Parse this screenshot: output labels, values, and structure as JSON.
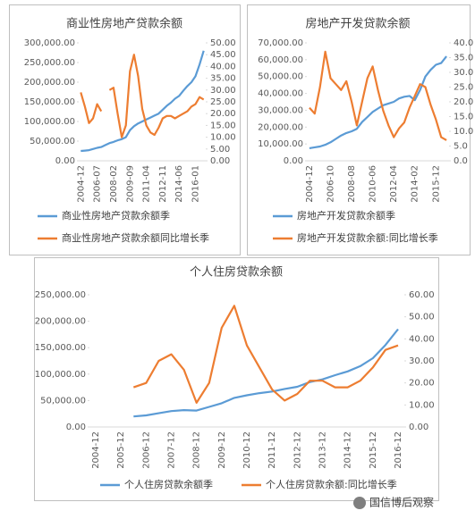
{
  "watermark": "国信博后观察",
  "chart_data": [
    {
      "type": "line",
      "title": "商业性房地产贷款余额",
      "categories": [
        "2004-12",
        null,
        null,
        null,
        "2006-07",
        null,
        null,
        null,
        "2008-02",
        null,
        null,
        null,
        "2009-09",
        null,
        null,
        null,
        "2011-04",
        null,
        null,
        null,
        "2012-11",
        null,
        null,
        null,
        "2014-06",
        null,
        null,
        null,
        "2016-01",
        null,
        null
      ],
      "series": [
        {
          "name": "商业性房地产贷款余额季",
          "color": "#5b9bd5",
          "values": [
            25000,
            26000,
            27000,
            30000,
            33000,
            35000,
            40000,
            45000,
            48000,
            52000,
            55000,
            60000,
            78000,
            88000,
            95000,
            100000,
            105000,
            110000,
            115000,
            120000,
            130000,
            140000,
            148000,
            158000,
            165000,
            178000,
            190000,
            200000,
            215000,
            245000,
            280000
          ]
        },
        {
          "name": "商业性房地产贷款余额同比增长季",
          "color": "#ed7d31",
          "axis": "y2",
          "values": [
            29,
            23,
            16,
            18,
            24,
            21,
            null,
            30,
            31,
            20,
            10,
            15,
            38,
            45,
            36,
            22,
            15,
            12,
            11,
            14,
            18,
            19,
            19,
            18,
            19,
            20,
            21,
            23,
            24,
            27,
            26
          ]
        }
      ],
      "ylim": [
        0,
        300000
      ],
      "yticks": [
        {
          "value": 0,
          "label": "0.00"
        },
        {
          "value": 50000,
          "label": "50,000.00"
        },
        {
          "value": 100000,
          "label": "100,000.00"
        },
        {
          "value": 150000,
          "label": "150,000.00"
        },
        {
          "value": 200000,
          "label": "200,000.00"
        },
        {
          "value": 250000,
          "label": "250,000.00"
        },
        {
          "value": 300000,
          "label": "300,000.00"
        }
      ],
      "y2lim": [
        0,
        50
      ],
      "y2ticks": [
        {
          "value": 0,
          "label": "0.00"
        },
        {
          "value": 5,
          "label": "5.00"
        },
        {
          "value": 10,
          "label": "10.00"
        },
        {
          "value": 15,
          "label": "15.00"
        },
        {
          "value": 20,
          "label": "20.00"
        },
        {
          "value": 25,
          "label": "25.00"
        },
        {
          "value": 30,
          "label": "30.00"
        },
        {
          "value": 35,
          "label": "35.00"
        },
        {
          "value": 40,
          "label": "40.00"
        },
        {
          "value": 45,
          "label": "45.00"
        },
        {
          "value": 50,
          "label": "50.00"
        }
      ],
      "legend": "bottom-vertical"
    },
    {
      "type": "line",
      "title": "房地产开发贷款余额",
      "categories": [
        "2004-12",
        null,
        null,
        null,
        "2006-10",
        null,
        null,
        null,
        "2008-08",
        null,
        null,
        null,
        "2010-06",
        null,
        null,
        null,
        "2012-04",
        null,
        null,
        null,
        "2014-02",
        null,
        null,
        null,
        "2015-12",
        null,
        null
      ],
      "series": [
        {
          "name": "房地产开发贷款余额季",
          "color": "#5b9bd5",
          "values": [
            7500,
            8000,
            8500,
            9500,
            11000,
            13000,
            15000,
            16500,
            17500,
            19000,
            23000,
            26000,
            29000,
            31000,
            33000,
            34000,
            35000,
            37000,
            38000,
            38500,
            36000,
            42000,
            50000,
            54000,
            57000,
            58000,
            62000
          ]
        },
        {
          "name": "房地产开发贷款余额:同比增长季",
          "color": "#ed7d31",
          "axis": "y2",
          "values": [
            18,
            16,
            25,
            37,
            28,
            26,
            24,
            27,
            20,
            12,
            20,
            28,
            32,
            24,
            17,
            12,
            8,
            11,
            13,
            18,
            22,
            26,
            25,
            19,
            14,
            8,
            7
          ]
        }
      ],
      "ylim": [
        0,
        70000
      ],
      "yticks": [
        {
          "value": 0,
          "label": "0.00"
        },
        {
          "value": 10000,
          "label": "10,000.00"
        },
        {
          "value": 20000,
          "label": "20,000.00"
        },
        {
          "value": 30000,
          "label": "30,000.00"
        },
        {
          "value": 40000,
          "label": "40,000.00"
        },
        {
          "value": 50000,
          "label": "50,000.00"
        },
        {
          "value": 60000,
          "label": "60,000.00"
        },
        {
          "value": 70000,
          "label": "70,000.00"
        }
      ],
      "y2lim": [
        0,
        40
      ],
      "y2ticks": [
        {
          "value": 0,
          "label": "0.0"
        },
        {
          "value": 5,
          "label": "5.0"
        },
        {
          "value": 10,
          "label": "10.0"
        },
        {
          "value": 15,
          "label": "15.0"
        },
        {
          "value": 20,
          "label": "20.0"
        },
        {
          "value": 25,
          "label": "25.0"
        },
        {
          "value": 30,
          "label": "30.0"
        },
        {
          "value": 35,
          "label": "35.0"
        },
        {
          "value": 40,
          "label": "40.0"
        }
      ],
      "legend": "bottom-vertical"
    },
    {
      "type": "line",
      "title": "个人住房贷款余额",
      "categories": [
        "2004-12",
        null,
        "2005-12",
        null,
        "2006-12",
        null,
        "2007-12",
        null,
        "2008-12",
        null,
        "2009-12",
        null,
        "2010-12",
        null,
        "2011-12",
        null,
        "2012-12",
        null,
        "2013-12",
        null,
        "2014-12",
        null,
        "2015-12",
        null,
        "2016-12"
      ],
      "series": [
        {
          "name": "个人住房贷款余额季",
          "color": "#5b9bd5",
          "values": [
            null,
            null,
            null,
            20000,
            22000,
            26000,
            30000,
            32000,
            31000,
            38000,
            45000,
            55000,
            60000,
            64000,
            67000,
            72000,
            76000,
            85000,
            90000,
            98000,
            105000,
            115000,
            130000,
            155000,
            185000
          ]
        },
        {
          "name": "个人住房贷款余额:同比增长季",
          "color": "#ed7d31",
          "axis": "y2",
          "values": [
            null,
            null,
            null,
            18,
            20,
            30,
            33,
            26,
            11,
            20,
            45,
            55,
            37,
            27,
            17,
            12,
            15,
            21,
            21,
            18,
            18,
            21,
            27,
            35,
            37
          ]
        }
      ],
      "ylim": [
        0,
        250000
      ],
      "yticks": [
        {
          "value": 0,
          "label": "0.00"
        },
        {
          "value": 50000,
          "label": "50,000.00"
        },
        {
          "value": 100000,
          "label": "100,000.00"
        },
        {
          "value": 150000,
          "label": "150,000.00"
        },
        {
          "value": 200000,
          "label": "200,000.00"
        },
        {
          "value": 250000,
          "label": "250,000.00"
        }
      ],
      "y2lim": [
        0,
        60
      ],
      "y2ticks": [
        {
          "value": 0,
          "label": "0.00"
        },
        {
          "value": 10,
          "label": "10.00"
        },
        {
          "value": 20,
          "label": "20.00"
        },
        {
          "value": 30,
          "label": "30.00"
        },
        {
          "value": 40,
          "label": "40.00"
        },
        {
          "value": 50,
          "label": "50.00"
        },
        {
          "value": 60,
          "label": "60.00"
        }
      ],
      "legend": "bottom-horizontal"
    }
  ]
}
